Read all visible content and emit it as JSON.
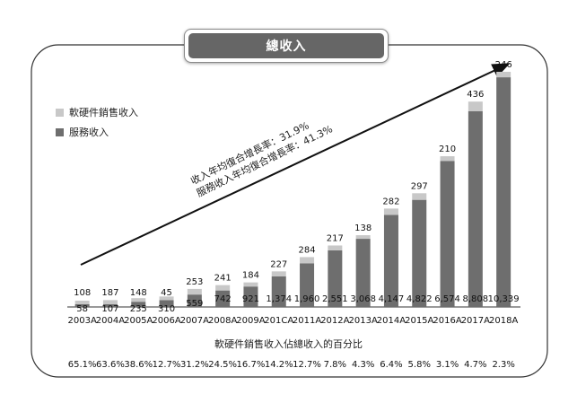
{
  "title": "總收入",
  "legend": [
    {
      "label": "軟硬件銷售收入",
      "color": "#c8c8c8"
    },
    {
      "label": "服務收入",
      "color": "#6e6e6e"
    }
  ],
  "growth_notes": [
    "收入年均復合增長率：31.9%",
    "服務收入年均復合增長率：41.3%"
  ],
  "percent_title": "軟硬件銷售收入佔總收入的百分比",
  "chart_data": {
    "type": "bar",
    "stacked": true,
    "categories": [
      "2003A",
      "2004A",
      "2005A",
      "2006A",
      "2007A",
      "2008A",
      "2009A",
      "201CA",
      "2011A",
      "2012A",
      "2013A",
      "2014A",
      "2015A",
      "2016A",
      "2017A",
      "2018A"
    ],
    "series": [
      {
        "name": "軟硬件銷售收入",
        "color": "#c8c8c8",
        "labels": [
          "108",
          "187",
          "148",
          "45",
          "253",
          "241",
          "184",
          "227",
          "284",
          "217",
          "138",
          "282",
          "297",
          "210",
          "436",
          "246"
        ],
        "values": [
          108,
          187,
          148,
          45,
          253,
          241,
          184,
          227,
          284,
          217,
          138,
          282,
          297,
          210,
          436,
          246
        ]
      },
      {
        "name": "服務收入",
        "color": "#6e6e6e",
        "labels": [
          "58",
          "107",
          "235",
          "310",
          "559",
          "742",
          "921",
          "1,374",
          "1,960",
          "2,551",
          "3,068",
          "4,147",
          "4,822",
          "6,574",
          "8,808",
          "10,339"
        ],
        "values": [
          58,
          107,
          235,
          310,
          559,
          742,
          921,
          1374,
          1960,
          2551,
          3068,
          4147,
          4822,
          6574,
          8808,
          10339
        ]
      }
    ],
    "percentages": [
      "65.1%",
      "63.6%",
      "38.6%",
      "12.7%",
      "31.2%",
      "24.5%",
      "16.7%",
      "14.2%",
      "12.7%",
      "7.8%",
      "4.3%",
      "6.4%",
      "5.8%",
      "3.1%",
      "4.7%",
      "2.3%"
    ]
  }
}
